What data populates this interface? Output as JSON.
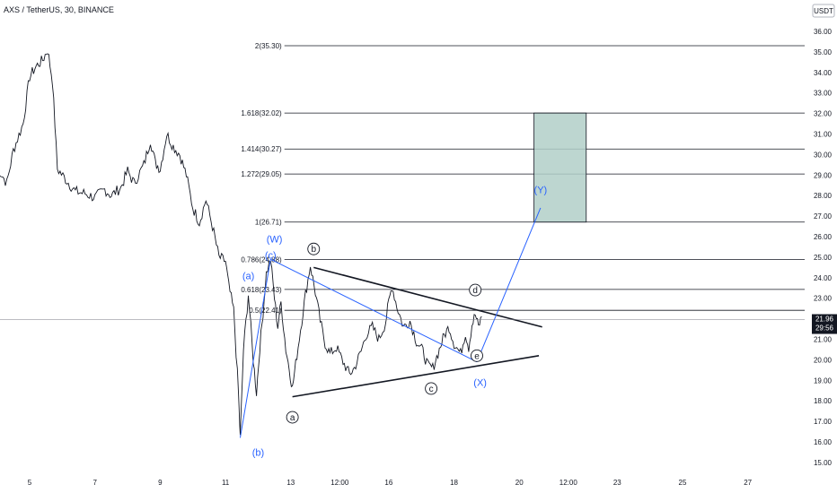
{
  "header": {
    "symbol_title": "AXS / TetherUS, 30, BINANCE",
    "currency": "USDT"
  },
  "price_badge": {
    "price": "21.96",
    "countdown": "29:56"
  },
  "chart_data": {
    "type": "line",
    "y_axis": {
      "ylim": [
        14.6,
        36.6
      ],
      "ticks": [
        15.0,
        16.0,
        17.0,
        18.0,
        19.0,
        20.0,
        21.0,
        22.0,
        23.0,
        24.0,
        25.0,
        26.0,
        27.0,
        28.0,
        29.0,
        30.0,
        31.0,
        32.0,
        33.0,
        34.0,
        35.0,
        36.0
      ],
      "tick_labels": [
        "15.00",
        "16.00",
        "17.00",
        "18.00",
        "19.00",
        "20.00",
        "21.00",
        "22.00",
        "23.00",
        "24.00",
        "25.00",
        "26.00",
        "27.00",
        "28.00",
        "29.00",
        "30.00",
        "31.00",
        "32.00",
        "33.00",
        "34.00",
        "35.00",
        "36.00"
      ]
    },
    "x_axis": {
      "range_days": [
        4,
        28.5
      ],
      "ticks": [
        {
          "v": 5,
          "label": "5"
        },
        {
          "v": 7,
          "label": "7"
        },
        {
          "v": 9,
          "label": "9"
        },
        {
          "v": 11,
          "label": "11"
        },
        {
          "v": 13,
          "label": "13"
        },
        {
          "v": 14.5,
          "label": "12:00"
        },
        {
          "v": 16,
          "label": "16"
        },
        {
          "v": 18,
          "label": "18"
        },
        {
          "v": 20,
          "label": "20"
        },
        {
          "v": 21.5,
          "label": "12:00"
        },
        {
          "v": 23,
          "label": "23"
        },
        {
          "v": 25,
          "label": "25"
        },
        {
          "v": 27,
          "label": "27"
        }
      ]
    },
    "current_price": 21.96,
    "price_path": [
      [
        4.0,
        29.4
      ],
      [
        4.3,
        28.6
      ],
      [
        4.5,
        30.2
      ],
      [
        4.8,
        31.5
      ],
      [
        5.0,
        33.8
      ],
      [
        5.2,
        34.3
      ],
      [
        5.4,
        34.6
      ],
      [
        5.55,
        35.1
      ],
      [
        5.7,
        33.6
      ],
      [
        5.85,
        29.3
      ],
      [
        6.1,
        28.8
      ],
      [
        6.4,
        28.2
      ],
      [
        6.7,
        28.1
      ],
      [
        7.0,
        27.9
      ],
      [
        7.3,
        28.3
      ],
      [
        7.5,
        28.0
      ],
      [
        7.8,
        28.4
      ],
      [
        8.0,
        29.2
      ],
      [
        8.2,
        28.6
      ],
      [
        8.5,
        29.5
      ],
      [
        8.7,
        30.7
      ],
      [
        8.85,
        29.6
      ],
      [
        9.0,
        29.3
      ],
      [
        9.2,
        31.0
      ],
      [
        9.4,
        30.4
      ],
      [
        9.6,
        30.0
      ],
      [
        9.8,
        29.0
      ],
      [
        10.0,
        27.4
      ],
      [
        10.2,
        26.7
      ],
      [
        10.4,
        27.8
      ],
      [
        10.6,
        26.5
      ],
      [
        10.8,
        25.0
      ],
      [
        11.0,
        24.8
      ],
      [
        11.1,
        23.6
      ],
      [
        11.25,
        22.4
      ],
      [
        11.4,
        18.3
      ],
      [
        11.45,
        16.2
      ],
      [
        11.55,
        20.5
      ],
      [
        11.7,
        23.2
      ],
      [
        11.85,
        20.0
      ],
      [
        11.95,
        18.4
      ],
      [
        12.05,
        20.6
      ],
      [
        12.15,
        22.3
      ],
      [
        12.25,
        24.2
      ],
      [
        12.38,
        24.9
      ],
      [
        12.5,
        23.0
      ],
      [
        12.6,
        21.6
      ],
      [
        12.7,
        22.8
      ],
      [
        12.85,
        20.5
      ],
      [
        12.95,
        19.6
      ],
      [
        13.05,
        18.6
      ],
      [
        13.15,
        19.8
      ],
      [
        13.3,
        21.5
      ],
      [
        13.45,
        23.2
      ],
      [
        13.6,
        24.6
      ],
      [
        13.75,
        23.3
      ],
      [
        13.9,
        21.9
      ],
      [
        14.05,
        20.8
      ],
      [
        14.2,
        20.3
      ],
      [
        14.4,
        20.6
      ],
      [
        14.6,
        19.9
      ],
      [
        14.8,
        19.3
      ],
      [
        14.95,
        19.6
      ],
      [
        15.15,
        20.4
      ],
      [
        15.3,
        21.2
      ],
      [
        15.5,
        21.6
      ],
      [
        15.7,
        21.0
      ],
      [
        15.9,
        21.8
      ],
      [
        16.0,
        22.8
      ],
      [
        16.1,
        23.6
      ],
      [
        16.25,
        22.6
      ],
      [
        16.45,
        21.6
      ],
      [
        16.65,
        21.9
      ],
      [
        16.85,
        20.9
      ],
      [
        17.05,
        20.4
      ],
      [
        17.2,
        19.7
      ],
      [
        17.35,
        19.6
      ],
      [
        17.55,
        20.5
      ],
      [
        17.7,
        21.2
      ],
      [
        17.85,
        21.6
      ],
      [
        18.0,
        20.8
      ],
      [
        18.2,
        20.3
      ],
      [
        18.35,
        21.3
      ],
      [
        18.45,
        20.6
      ],
      [
        18.55,
        21.7
      ],
      [
        18.65,
        22.2
      ],
      [
        18.75,
        21.6
      ],
      [
        18.85,
        22.1
      ]
    ],
    "triangle_lines": [
      {
        "from": [
          13.7,
          24.5
        ],
        "to": [
          20.7,
          21.6
        ]
      },
      {
        "from": [
          13.05,
          18.2
        ],
        "to": [
          20.6,
          20.2
        ]
      }
    ],
    "blue_lines": [
      {
        "from": [
          11.45,
          16.2
        ],
        "to": [
          12.38,
          24.9
        ]
      },
      {
        "from": [
          12.38,
          24.9
        ],
        "to": [
          18.7,
          19.9
        ]
      },
      {
        "from": [
          18.7,
          19.9
        ],
        "to": [
          20.65,
          27.4
        ]
      }
    ],
    "fib_levels": [
      {
        "label": "0.5(22.41)",
        "value": 22.41,
        "x_start": 12.75
      },
      {
        "label": "0.618(23.43)",
        "value": 23.43,
        "x_start": 12.75
      },
      {
        "label": "0.786(24.88)",
        "value": 24.88,
        "x_start": 12.75
      },
      {
        "label": "1(26.71)",
        "value": 26.71,
        "x_start": 12.75
      },
      {
        "label": "1.272(29.05)",
        "value": 29.05,
        "x_start": 12.75
      },
      {
        "label": "1.414(30.27)",
        "value": 30.27,
        "x_start": 12.75
      },
      {
        "label": "1.618(32.02)",
        "value": 32.02,
        "x_start": 12.75
      },
      {
        "label": "2(35.30)",
        "value": 35.3,
        "x_start": 12.75
      }
    ],
    "target_box": {
      "x_from": 20.45,
      "x_to": 22.05,
      "y_from": 26.71,
      "y_to": 32.02
    },
    "wave_labels_blue": [
      {
        "text": "(a)",
        "x": 11.7,
        "y": 24.1
      },
      {
        "text": "(b)",
        "x": 12.0,
        "y": 15.5
      },
      {
        "text": "(c)",
        "x": 12.38,
        "y": 25.1
      },
      {
        "text": "(W)",
        "x": 12.5,
        "y": 25.9
      },
      {
        "text": "(X)",
        "x": 18.8,
        "y": 18.9
      },
      {
        "text": "(Y)",
        "x": 20.65,
        "y": 28.3
      }
    ],
    "wave_labels_circled": [
      {
        "text": "a",
        "x": 13.05,
        "y": 17.2
      },
      {
        "text": "b",
        "x": 13.7,
        "y": 25.4
      },
      {
        "text": "c",
        "x": 17.3,
        "y": 18.6
      },
      {
        "text": "d",
        "x": 18.65,
        "y": 23.4
      },
      {
        "text": "e",
        "x": 18.7,
        "y": 20.2
      }
    ]
  }
}
